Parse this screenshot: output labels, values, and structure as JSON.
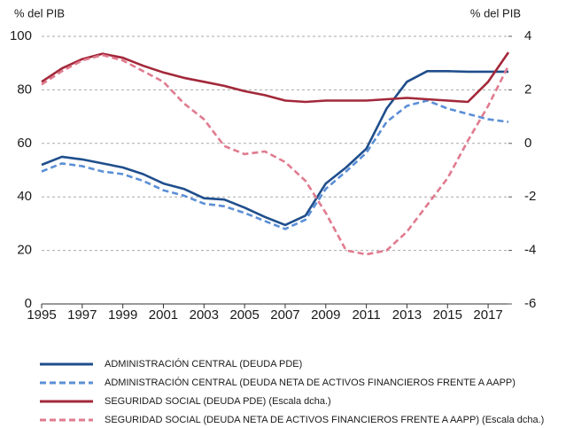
{
  "chart_data": {
    "type": "line",
    "y_label": "% del PIB",
    "y2_label": "% del PIB",
    "x": [
      1995,
      1996,
      1997,
      1998,
      1999,
      2000,
      2001,
      2002,
      2003,
      2004,
      2005,
      2006,
      2007,
      2008,
      2009,
      2010,
      2011,
      2012,
      2013,
      2014,
      2015,
      2016,
      2017,
      2018
    ],
    "xlim": [
      1995,
      2018
    ],
    "xticks": [
      1995,
      1997,
      1999,
      2001,
      2003,
      2005,
      2007,
      2009,
      2011,
      2013,
      2015,
      2017
    ],
    "ylim": [
      0,
      100
    ],
    "yticks": [
      0,
      20,
      40,
      60,
      80,
      100
    ],
    "y2lim": [
      -6,
      4
    ],
    "y2ticks": [
      -6,
      -4,
      -2,
      0,
      2,
      4
    ],
    "grid": true,
    "legend": "bottom",
    "series": [
      {
        "name": "ADMINISTRACIÓN CENTRAL (DEUDA PDE)",
        "color": "#1f4e8c",
        "dashed": false,
        "values": [
          52,
          55,
          54,
          52.5,
          51,
          48.5,
          45,
          43,
          39.5,
          39,
          36,
          32.5,
          29.5,
          33,
          45,
          51,
          58,
          73,
          83,
          87,
          87,
          86.8,
          86.8,
          86.8
        ]
      },
      {
        "name": "ADMINISTRACIÓN CENTRAL (DEUDA NETA DE ACTIVOS FINANCIEROS FRENTE A AAPP)",
        "color": "#5b8fd6",
        "dashed": true,
        "values": [
          49.5,
          52.5,
          51.5,
          49.5,
          48.5,
          46,
          42.5,
          40.5,
          37.5,
          36.5,
          34,
          31,
          28,
          31.5,
          43,
          49.5,
          56.5,
          68,
          74,
          76,
          73,
          71,
          69,
          68
        ]
      },
      {
        "name": "SEGURIDAD SOCIAL (DEUDA PDE) (Escala dcha.)",
        "color": "#a3283a",
        "dashed": false,
        "axis": "y2",
        "values": [
          2.3,
          2.8,
          3.15,
          3.35,
          3.2,
          2.9,
          2.65,
          2.45,
          2.3,
          2.15,
          1.95,
          1.8,
          1.6,
          1.55,
          1.6,
          1.6,
          1.6,
          1.65,
          1.7,
          1.65,
          1.6,
          1.55,
          2.3,
          3.4
        ]
      },
      {
        "name": "SEGURIDAD SOCIAL (DEUDA NETA DE ACTIVOS FINANCIEROS FRENTE A AAPP) (Escala dcha.)",
        "color": "#e07b8f",
        "dashed": true,
        "axis": "y2",
        "values": [
          2.2,
          2.7,
          3.1,
          3.3,
          3.1,
          2.7,
          2.3,
          1.5,
          0.9,
          -0.1,
          -0.4,
          -0.3,
          -0.7,
          -1.4,
          -2.6,
          -4.0,
          -4.15,
          -4.0,
          -3.3,
          -2.3,
          -1.3,
          0.1,
          1.4,
          2.9
        ]
      }
    ]
  }
}
